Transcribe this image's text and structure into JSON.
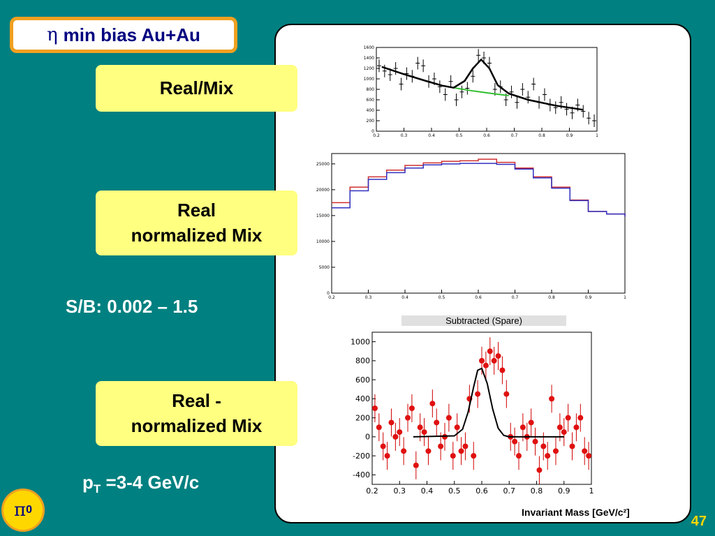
{
  "slide": {
    "title_symbol": "η",
    "title_text": "min bias Au+Au",
    "label_real_mix": "Real/Mix",
    "label_norm_line1": "Real",
    "label_norm_line2": "normalized Mix",
    "label_sub_line1": "Real -",
    "label_sub_line2": "normalized Mix",
    "sb_text": "S/B: 0.002 – 1.5",
    "pt_p": "p",
    "pt_sub": "T",
    "pt_rest": " =3-4 GeV/c",
    "badge_symbol": "π",
    "badge_sup": "0",
    "page_number": "47",
    "colors": {
      "background": "#008080",
      "label_fill": "#ffff80",
      "title_border": "#f0a020",
      "badge": "#ffd700"
    }
  },
  "chart_data": [
    {
      "type": "scatter",
      "id": "top",
      "xlim": [
        0.2,
        1.0
      ],
      "ylim": [
        0,
        1600
      ],
      "xticks": [
        "0.2",
        "0.3",
        "0.4",
        "0.5",
        "0.6",
        "0.7",
        "0.8",
        "0.9",
        "1"
      ],
      "yticks": [
        "0",
        "200",
        "400",
        "600",
        "800",
        "1000",
        "1200",
        "1400",
        "1600"
      ],
      "x": [
        0.21,
        0.23,
        0.25,
        0.27,
        0.29,
        0.31,
        0.33,
        0.35,
        0.37,
        0.39,
        0.41,
        0.43,
        0.45,
        0.47,
        0.49,
        0.51,
        0.53,
        0.55,
        0.57,
        0.59,
        0.61,
        0.63,
        0.65,
        0.67,
        0.69,
        0.71,
        0.73,
        0.75,
        0.77,
        0.79,
        0.81,
        0.83,
        0.85,
        0.87,
        0.89,
        0.91,
        0.93,
        0.95,
        0.97,
        0.99
      ],
      "y": [
        1250,
        1150,
        1080,
        1200,
        900,
        1100,
        1050,
        1300,
        1250,
        950,
        1000,
        850,
        700,
        950,
        600,
        750,
        820,
        1050,
        1450,
        1400,
        1300,
        800,
        850,
        600,
        750,
        550,
        800,
        650,
        900,
        550,
        700,
        500,
        450,
        550,
        420,
        350,
        500,
        380,
        250,
        200
      ],
      "fit_x": [
        0.22,
        0.3,
        0.38,
        0.44,
        0.48,
        0.52,
        0.55,
        0.58,
        0.61,
        0.64,
        0.68,
        0.75,
        0.85,
        0.95
      ],
      "fit_y": [
        1230,
        1090,
        960,
        870,
        830,
        960,
        1200,
        1370,
        1200,
        880,
        720,
        600,
        490,
        410
      ],
      "bg_x": [
        0.48,
        0.55,
        0.62,
        0.68
      ],
      "bg_y": [
        830,
        770,
        720,
        680
      ]
    },
    {
      "type": "line",
      "id": "middle",
      "xlim": [
        0.2,
        1.0
      ],
      "ylim": [
        0,
        27000
      ],
      "xticks": [
        "0.2",
        "0.3",
        "0.4",
        "0.5",
        "0.6",
        "0.7",
        "0.8",
        "0.9",
        "1"
      ],
      "yticks": [
        "0",
        "5000",
        "10000",
        "15000",
        "20000",
        "25000"
      ],
      "caption": "Subtracted (Spare)",
      "series": [
        {
          "color": "#d03030",
          "x": [
            0.2,
            0.25,
            0.3,
            0.35,
            0.4,
            0.45,
            0.5,
            0.55,
            0.6,
            0.65,
            0.7,
            0.75,
            0.8,
            0.85,
            0.9,
            0.95,
            1.0
          ],
          "y": [
            17500,
            20500,
            22500,
            23800,
            24700,
            25200,
            25500,
            25600,
            25900,
            25300,
            24200,
            22500,
            20500,
            18000,
            15800,
            15300,
            14800
          ]
        },
        {
          "color": "#3030c0",
          "x": [
            0.2,
            0.25,
            0.3,
            0.35,
            0.4,
            0.45,
            0.5,
            0.55,
            0.6,
            0.65,
            0.7,
            0.75,
            0.8,
            0.85,
            0.9,
            0.95,
            1.0
          ],
          "y": [
            16500,
            19800,
            22000,
            23300,
            24200,
            24800,
            25000,
            25100,
            25100,
            24900,
            24000,
            22300,
            20300,
            17900,
            15800,
            15300,
            14800
          ]
        }
      ]
    },
    {
      "type": "scatter",
      "id": "bottom",
      "xlim": [
        0.2,
        1.0
      ],
      "ylim": [
        -500,
        1100
      ],
      "xticks": [
        "0.2",
        "0.3",
        "0.4",
        "0.5",
        "0.6",
        "0.7",
        "0.8",
        "0.9",
        "1"
      ],
      "yticks": [
        "1000",
        "800",
        "600",
        "400",
        "200",
        "0",
        "-200",
        "-400"
      ],
      "xlabel": "Invariant Mass [GeV/c²]",
      "x": [
        0.21,
        0.225,
        0.24,
        0.255,
        0.27,
        0.285,
        0.3,
        0.315,
        0.33,
        0.345,
        0.36,
        0.375,
        0.39,
        0.405,
        0.42,
        0.435,
        0.45,
        0.465,
        0.48,
        0.495,
        0.51,
        0.525,
        0.54,
        0.555,
        0.57,
        0.585,
        0.6,
        0.615,
        0.63,
        0.645,
        0.66,
        0.675,
        0.69,
        0.705,
        0.72,
        0.735,
        0.75,
        0.765,
        0.78,
        0.795,
        0.81,
        0.825,
        0.84,
        0.855,
        0.87,
        0.885,
        0.9,
        0.915,
        0.93,
        0.945,
        0.96,
        0.975,
        0.99
      ],
      "y": [
        300,
        100,
        -100,
        -200,
        150,
        0,
        50,
        -150,
        200,
        300,
        -300,
        100,
        50,
        -150,
        350,
        150,
        -100,
        0,
        200,
        -200,
        100,
        -150,
        -100,
        400,
        -200,
        450,
        800,
        750,
        900,
        800,
        850,
        700,
        450,
        0,
        -50,
        -200,
        100,
        0,
        150,
        -50,
        -350,
        -100,
        -200,
        400,
        -150,
        100,
        50,
        200,
        -100,
        100,
        200,
        -150,
        -200
      ],
      "fit_x": [
        0.35,
        0.5,
        0.53,
        0.55,
        0.57,
        0.585,
        0.6,
        0.62,
        0.64,
        0.66,
        0.68,
        0.7,
        0.8,
        0.9
      ],
      "fit_y": [
        0,
        10,
        80,
        260,
        520,
        700,
        720,
        560,
        290,
        90,
        15,
        0,
        0,
        0
      ]
    }
  ]
}
